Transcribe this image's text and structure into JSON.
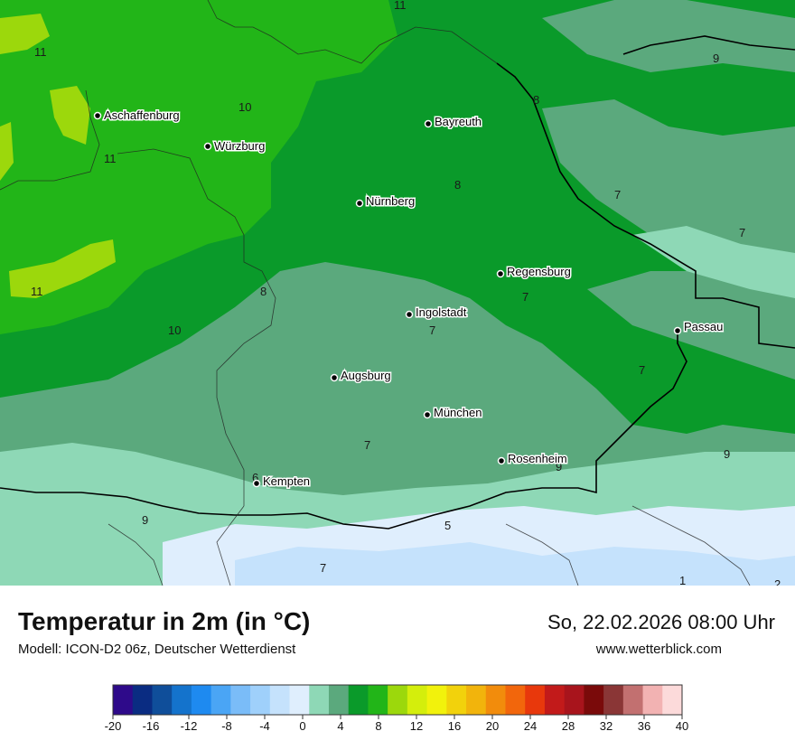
{
  "map": {
    "cities": [
      {
        "name": "Aschaffenburg"
      },
      {
        "name": "Würzburg"
      },
      {
        "name": "Bayreuth"
      },
      {
        "name": "Nürnberg"
      },
      {
        "name": "Regensburg"
      },
      {
        "name": "Ingolstadt"
      },
      {
        "name": "Passau"
      },
      {
        "name": "Augsburg"
      },
      {
        "name": "München"
      },
      {
        "name": "Rosenheim"
      },
      {
        "name": "Kempten"
      }
    ],
    "isotherm_values": [
      "11",
      "11",
      "10",
      "11",
      "8",
      "9",
      "8",
      "7",
      "7",
      "11",
      "8",
      "10",
      "7",
      "7",
      "7",
      "7",
      "9",
      "9",
      "6",
      "9",
      "5",
      "7",
      "1",
      "2"
    ]
  },
  "footer": {
    "title": "Temperatur in 2m (in °C)",
    "model": "Modell: ICON-D2 06z, Deutscher Wetterdienst",
    "datetime": "So, 22.02.2026 08:00 Uhr",
    "website": "www.wetterblick.com"
  },
  "legend": {
    "ticks": [
      "-20",
      "-16",
      "-12",
      "-8",
      "-4",
      "0",
      "4",
      "8",
      "12",
      "16",
      "20",
      "24",
      "28",
      "32",
      "36",
      "40"
    ],
    "colors": [
      "#2e0a8a",
      "#0a2c82",
      "#0f4e9a",
      "#1473cc",
      "#1e8af0",
      "#4aa5f5",
      "#7abcf8",
      "#9fd0fb",
      "#c5e2fc",
      "#dfeefd",
      "#8ed8b6",
      "#5ba97d",
      "#0a9a2a",
      "#22b518",
      "#9cd80c",
      "#d4ee0c",
      "#f2f20c",
      "#f2d20c",
      "#f2b40c",
      "#f28c0c",
      "#f2660c",
      "#e8380c",
      "#c21a1a",
      "#a8141c",
      "#7a0a0a",
      "#8a3636",
      "#c27070",
      "#f2b2b2",
      "#fcdada"
    ]
  }
}
